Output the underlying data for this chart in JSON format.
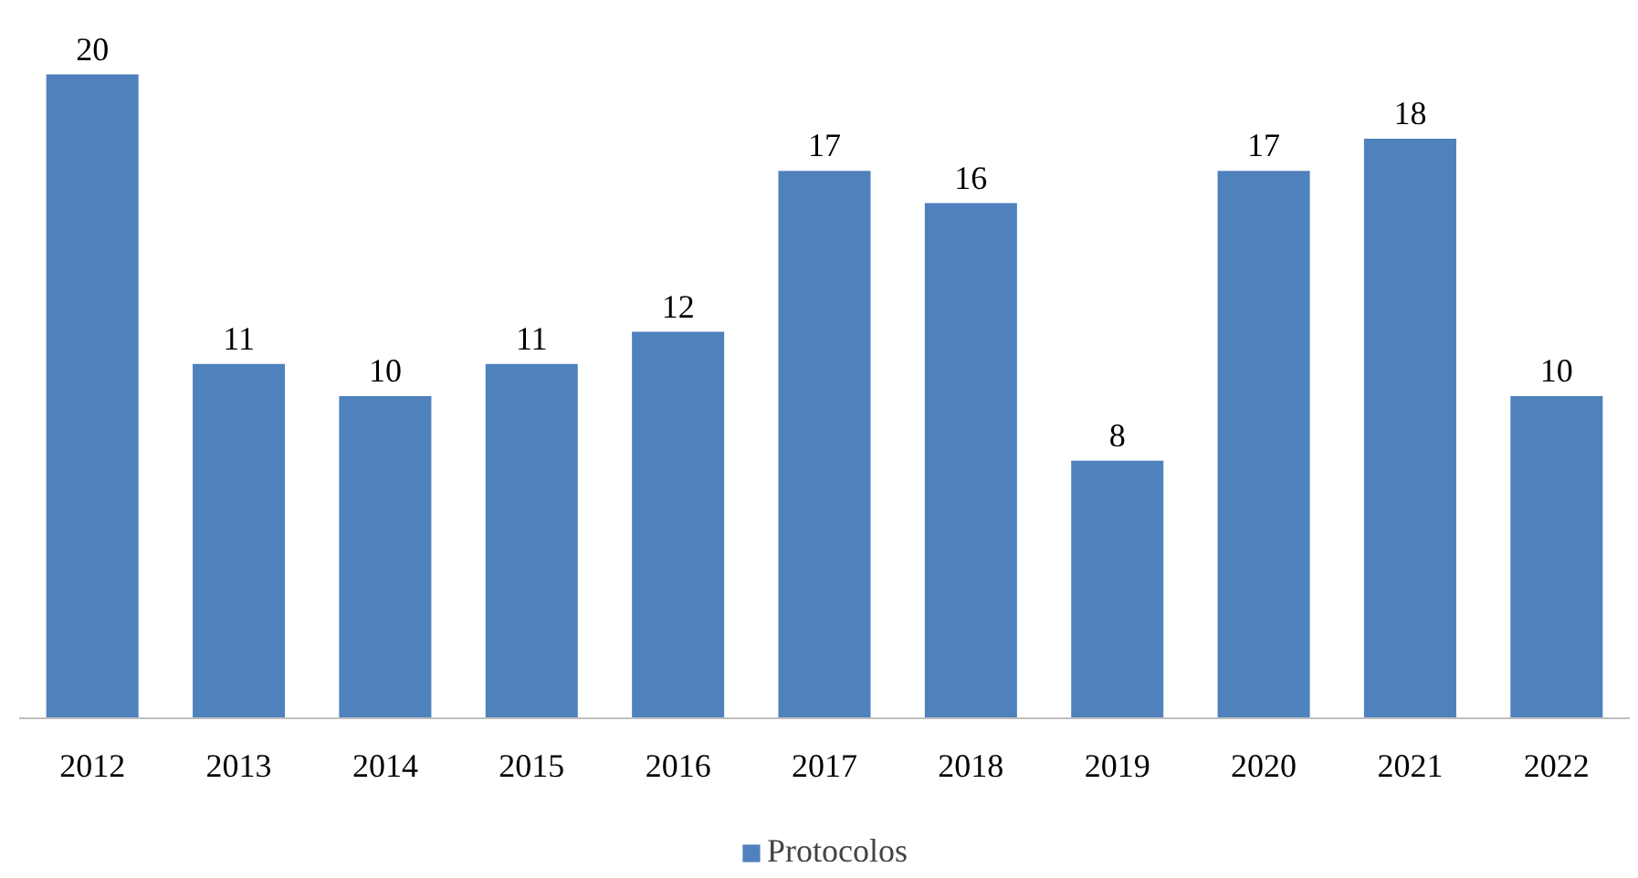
{
  "chart_data": {
    "type": "bar",
    "categories": [
      "2012",
      "2013",
      "2014",
      "2015",
      "2016",
      "2017",
      "2018",
      "2019",
      "2020",
      "2021",
      "2022"
    ],
    "series": [
      {
        "name": "Protocolos",
        "color": "#4f81bd",
        "values": [
          20,
          11,
          10,
          11,
          12,
          17,
          16,
          8,
          17,
          18,
          10
        ]
      }
    ],
    "data_labels": true,
    "legend": "bottom",
    "grid": false,
    "tick_labels": "x"
  }
}
